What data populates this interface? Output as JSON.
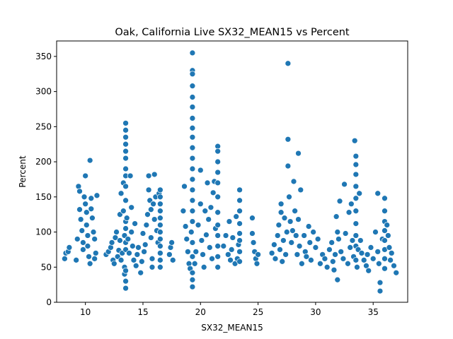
{
  "chart_data": {
    "type": "scatter",
    "title": "Oak, California Live SX32_MEAN15 vs Percent",
    "xlabel": "SX32_MEAN15",
    "ylabel": "Percent",
    "xlim": [
      7.5,
      38
    ],
    "ylim": [
      0,
      372
    ],
    "xticks": [
      10,
      15,
      20,
      25,
      30,
      35
    ],
    "yticks": [
      0,
      50,
      100,
      150,
      200,
      250,
      300,
      350
    ],
    "grid": false,
    "marker_color": "#1f77b4",
    "series": [
      {
        "points": [
          [
            8.2,
            62
          ],
          [
            8.3,
            70
          ],
          [
            8.5,
            72
          ],
          [
            8.6,
            78
          ],
          [
            9.2,
            60
          ],
          [
            9.3,
            90
          ],
          [
            9.4,
            165
          ],
          [
            9.5,
            158
          ],
          [
            9.5,
            132
          ],
          [
            9.6,
            118
          ],
          [
            9.7,
            102
          ],
          [
            9.8,
            85
          ],
          [
            9.8,
            75
          ],
          [
            9.9,
            150
          ],
          [
            10.0,
            180
          ],
          [
            10.0,
            140
          ],
          [
            10.1,
            128
          ],
          [
            10.1,
            110
          ],
          [
            10.2,
            95
          ],
          [
            10.2,
            80
          ],
          [
            10.3,
            65
          ],
          [
            10.4,
            55
          ],
          [
            10.4,
            202
          ],
          [
            10.5,
            148
          ],
          [
            10.5,
            133
          ],
          [
            10.6,
            120
          ],
          [
            10.7,
            100
          ],
          [
            10.8,
            90
          ],
          [
            10.8,
            62
          ],
          [
            10.9,
            70
          ],
          [
            11.0,
            152
          ],
          [
            11.8,
            68
          ],
          [
            12.0,
            72
          ],
          [
            12.2,
            78
          ],
          [
            12.3,
            85
          ],
          [
            12.4,
            60
          ],
          [
            12.5,
            55
          ],
          [
            12.6,
            92
          ],
          [
            12.7,
            100
          ],
          [
            12.8,
            65
          ],
          [
            12.9,
            74
          ],
          [
            13.0,
            88
          ],
          [
            13.0,
            125
          ],
          [
            13.1,
            155
          ],
          [
            13.1,
            60
          ],
          [
            13.2,
            70
          ],
          [
            13.3,
            170
          ],
          [
            13.3,
            130
          ],
          [
            13.4,
            95
          ],
          [
            13.4,
            50
          ],
          [
            13.4,
            40
          ],
          [
            13.5,
            255
          ],
          [
            13.5,
            245
          ],
          [
            13.5,
            235
          ],
          [
            13.5,
            225
          ],
          [
            13.5,
            215
          ],
          [
            13.5,
            205
          ],
          [
            13.5,
            190
          ],
          [
            13.5,
            180
          ],
          [
            13.5,
            165
          ],
          [
            13.5,
            145
          ],
          [
            13.5,
            115
          ],
          [
            13.5,
            105
          ],
          [
            13.5,
            85
          ],
          [
            13.5,
            75
          ],
          [
            13.5,
            45
          ],
          [
            13.5,
            30
          ],
          [
            13.5,
            20
          ],
          [
            13.6,
            120
          ],
          [
            13.7,
            90
          ],
          [
            13.8,
            70
          ],
          [
            13.9,
            180
          ],
          [
            14.0,
            100
          ],
          [
            14.0,
            135
          ],
          [
            14.1,
            80
          ],
          [
            14.2,
            60
          ],
          [
            14.3,
            112
          ],
          [
            14.4,
            52
          ],
          [
            14.5,
            68
          ],
          [
            14.6,
            78
          ],
          [
            14.8,
            42
          ],
          [
            14.9,
            58
          ],
          [
            15.0,
            98
          ],
          [
            15.1,
            72
          ],
          [
            15.2,
            82
          ],
          [
            15.3,
            110
          ],
          [
            15.4,
            125
          ],
          [
            15.5,
            180
          ],
          [
            15.5,
            160
          ],
          [
            15.6,
            145
          ],
          [
            15.7,
            132
          ],
          [
            15.7,
            92
          ],
          [
            15.8,
            62
          ],
          [
            15.8,
            50
          ],
          [
            15.9,
            140
          ],
          [
            16.0,
            182
          ],
          [
            16.0,
            118
          ],
          [
            16.1,
            150
          ],
          [
            16.2,
            102
          ],
          [
            16.3,
            85
          ],
          [
            16.4,
            155
          ],
          [
            16.5,
            160
          ],
          [
            16.5,
            150
          ],
          [
            16.5,
            140
          ],
          [
            16.5,
            130
          ],
          [
            16.5,
            120
          ],
          [
            16.5,
            110
          ],
          [
            16.5,
            100
          ],
          [
            16.5,
            90
          ],
          [
            16.5,
            80
          ],
          [
            16.5,
            70
          ],
          [
            16.5,
            60
          ],
          [
            16.5,
            50
          ],
          [
            17.3,
            68
          ],
          [
            17.4,
            78
          ],
          [
            17.5,
            85
          ],
          [
            17.6,
            60
          ],
          [
            18.5,
            130
          ],
          [
            18.6,
            165
          ],
          [
            18.7,
            108
          ],
          [
            18.8,
            90
          ],
          [
            18.9,
            72
          ],
          [
            19.0,
            55
          ],
          [
            19.1,
            48
          ],
          [
            19.2,
            100
          ],
          [
            19.3,
            355
          ],
          [
            19.3,
            330
          ],
          [
            19.3,
            325
          ],
          [
            19.3,
            308
          ],
          [
            19.3,
            292
          ],
          [
            19.3,
            278
          ],
          [
            19.3,
            262
          ],
          [
            19.3,
            248
          ],
          [
            19.3,
            235
          ],
          [
            19.3,
            220
          ],
          [
            19.3,
            205
          ],
          [
            19.3,
            190
          ],
          [
            19.3,
            175
          ],
          [
            19.3,
            160
          ],
          [
            19.3,
            145
          ],
          [
            19.3,
            130
          ],
          [
            19.3,
            115
          ],
          [
            19.3,
            85
          ],
          [
            19.3,
            65
          ],
          [
            19.3,
            42
          ],
          [
            19.3,
            32
          ],
          [
            19.3,
            22
          ],
          [
            19.5,
            55
          ],
          [
            19.6,
            72
          ],
          [
            19.8,
            110
          ],
          [
            20.0,
            188
          ],
          [
            20.0,
            140
          ],
          [
            20.1,
            88
          ],
          [
            20.2,
            68
          ],
          [
            20.3,
            50
          ],
          [
            20.4,
            130
          ],
          [
            20.5,
            96
          ],
          [
            20.6,
            170
          ],
          [
            20.7,
            118
          ],
          [
            20.8,
            78
          ],
          [
            20.9,
            135
          ],
          [
            21.0,
            62
          ],
          [
            21.1,
            156
          ],
          [
            21.2,
            172
          ],
          [
            21.3,
            105
          ],
          [
            21.5,
            222
          ],
          [
            21.5,
            215
          ],
          [
            21.5,
            200
          ],
          [
            21.5,
            185
          ],
          [
            21.5,
            170
          ],
          [
            21.5,
            150
          ],
          [
            21.5,
            128
          ],
          [
            21.5,
            110
          ],
          [
            21.5,
            95
          ],
          [
            21.5,
            80
          ],
          [
            21.5,
            65
          ],
          [
            21.5,
            50
          ],
          [
            22.0,
            80
          ],
          [
            22.2,
            95
          ],
          [
            22.4,
            68
          ],
          [
            22.5,
            115
          ],
          [
            22.6,
            60
          ],
          [
            22.7,
            75
          ],
          [
            22.8,
            92
          ],
          [
            23.0,
            55
          ],
          [
            23.1,
            122
          ],
          [
            23.2,
            62
          ],
          [
            23.3,
            82
          ],
          [
            23.4,
            160
          ],
          [
            23.4,
            145
          ],
          [
            23.4,
            130
          ],
          [
            23.4,
            112
          ],
          [
            23.4,
            98
          ],
          [
            23.4,
            88
          ],
          [
            23.4,
            72
          ],
          [
            23.4,
            58
          ],
          [
            24.5,
            120
          ],
          [
            24.5,
            98
          ],
          [
            24.6,
            85
          ],
          [
            24.7,
            72
          ],
          [
            24.8,
            62
          ],
          [
            24.9,
            55
          ],
          [
            25.0,
            68
          ],
          [
            26.2,
            70
          ],
          [
            26.4,
            82
          ],
          [
            26.5,
            62
          ],
          [
            26.7,
            95
          ],
          [
            26.8,
            110
          ],
          [
            26.9,
            75
          ],
          [
            27.0,
            140
          ],
          [
            27.0,
            128
          ],
          [
            27.1,
            58
          ],
          [
            27.2,
            88
          ],
          [
            27.3,
            120
          ],
          [
            27.4,
            68
          ],
          [
            27.5,
            100
          ],
          [
            27.6,
            340
          ],
          [
            27.6,
            232
          ],
          [
            27.6,
            194
          ],
          [
            27.7,
            150
          ],
          [
            27.8,
            115
          ],
          [
            27.9,
            85
          ],
          [
            28.0,
            102
          ],
          [
            28.1,
            172
          ],
          [
            28.2,
            130
          ],
          [
            28.3,
            95
          ],
          [
            28.4,
            68
          ],
          [
            28.5,
            212
          ],
          [
            28.5,
            118
          ],
          [
            28.6,
            80
          ],
          [
            28.7,
            160
          ],
          [
            28.8,
            55
          ],
          [
            29.0,
            95
          ],
          [
            29.1,
            72
          ],
          [
            29.2,
            65
          ],
          [
            29.4,
            108
          ],
          [
            29.5,
            85
          ],
          [
            29.6,
            60
          ],
          [
            29.8,
            100
          ],
          [
            30.0,
            78
          ],
          [
            30.2,
            90
          ],
          [
            30.4,
            55
          ],
          [
            30.6,
            68
          ],
          [
            30.8,
            62
          ],
          [
            31.0,
            50
          ],
          [
            31.2,
            75
          ],
          [
            31.4,
            85
          ],
          [
            31.5,
            58
          ],
          [
            31.6,
            46
          ],
          [
            31.7,
            68
          ],
          [
            31.8,
            122
          ],
          [
            31.9,
            100
          ],
          [
            31.9,
            32
          ],
          [
            32.0,
            90
          ],
          [
            32.1,
            144
          ],
          [
            32.2,
            72
          ],
          [
            32.4,
            62
          ],
          [
            32.5,
            168
          ],
          [
            32.6,
            98
          ],
          [
            32.8,
            55
          ],
          [
            32.9,
            128
          ],
          [
            33.0,
            78
          ],
          [
            33.1,
            140
          ],
          [
            33.2,
            88
          ],
          [
            33.3,
            65
          ],
          [
            33.4,
            230
          ],
          [
            33.5,
            208
          ],
          [
            33.5,
            196
          ],
          [
            33.5,
            182
          ],
          [
            33.5,
            165
          ],
          [
            33.5,
            148
          ],
          [
            33.5,
            130
          ],
          [
            33.5,
            112
          ],
          [
            33.5,
            95
          ],
          [
            33.5,
            80
          ],
          [
            33.5,
            60
          ],
          [
            33.6,
            50
          ],
          [
            33.7,
            75
          ],
          [
            33.8,
            155
          ],
          [
            33.9,
            88
          ],
          [
            34.0,
            70
          ],
          [
            34.2,
            60
          ],
          [
            34.4,
            52
          ],
          [
            34.5,
            68
          ],
          [
            34.6,
            45
          ],
          [
            34.8,
            78
          ],
          [
            35.0,
            62
          ],
          [
            35.2,
            100
          ],
          [
            35.4,
            155
          ],
          [
            35.4,
            72
          ],
          [
            35.5,
            55
          ],
          [
            35.6,
            28
          ],
          [
            35.6,
            16
          ],
          [
            35.8,
            90
          ],
          [
            36.0,
            148
          ],
          [
            36.0,
            130
          ],
          [
            36.0,
            115
          ],
          [
            36.0,
            102
          ],
          [
            36.0,
            88
          ],
          [
            36.0,
            75
          ],
          [
            36.0,
            62
          ],
          [
            36.0,
            48
          ],
          [
            36.2,
            110
          ],
          [
            36.3,
            95
          ],
          [
            36.4,
            78
          ],
          [
            36.5,
            60
          ],
          [
            36.6,
            70
          ],
          [
            36.8,
            52
          ],
          [
            37.0,
            42
          ]
        ]
      }
    ]
  }
}
